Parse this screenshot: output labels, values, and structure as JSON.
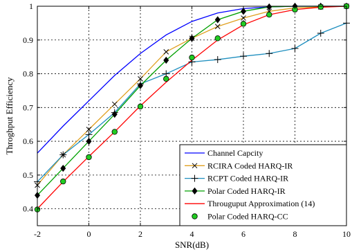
{
  "chart_data": {
    "type": "line",
    "xlabel": "SNR(dB)",
    "ylabel": "Throghput Efficiency",
    "xlim": [
      -2,
      10
    ],
    "ylim": [
      0.35,
      1.0
    ],
    "xticks": [
      -2,
      0,
      2,
      4,
      6,
      8,
      10
    ],
    "yticks": [
      0.4,
      0.5,
      0.6,
      0.7,
      0.8,
      0.9,
      1
    ],
    "xtick_labels": [
      "-2",
      "0",
      "2",
      "4",
      "6",
      "8",
      "10"
    ],
    "ytick_labels": [
      "0.4",
      "0.5",
      "0.6",
      "0.7",
      "0.8",
      "0.9",
      "1"
    ],
    "grid": true,
    "legend_position": "bottom-right",
    "series": [
      {
        "name": "Channel Capcity",
        "color": "#0000ff",
        "marker": "none",
        "x": [
          -2,
          -1,
          0,
          1,
          2,
          3,
          4,
          5,
          6,
          7,
          8,
          9,
          10
        ],
        "y": [
          0.565,
          0.645,
          0.72,
          0.795,
          0.86,
          0.915,
          0.955,
          0.98,
          0.993,
          0.998,
          1.0,
          1.0,
          1.0
        ]
      },
      {
        "name": "RCIRA Coded HARQ-IR",
        "color": "#e0a020",
        "marker": "x",
        "x": [
          -2,
          -1,
          0,
          1,
          2,
          3,
          4,
          5,
          6,
          7,
          8,
          9,
          10
        ],
        "y": [
          0.47,
          0.56,
          0.635,
          0.71,
          0.785,
          0.865,
          0.905,
          0.94,
          0.965,
          0.985,
          0.995,
          0.998,
          1.0
        ]
      },
      {
        "name": "RCPT Coded HARQ-IR",
        "color": "#1f8fbf",
        "marker": "plus",
        "x": [
          -2,
          -1,
          0,
          1,
          2,
          3,
          4,
          5,
          6,
          7,
          8,
          9,
          10
        ],
        "y": [
          0.48,
          0.56,
          0.62,
          0.685,
          0.77,
          0.8,
          0.835,
          0.842,
          0.852,
          0.86,
          0.875,
          0.92,
          0.95
        ]
      },
      {
        "name": "Polar Coded HARQ-IR",
        "color": "#00a000",
        "marker": "diamond",
        "x": [
          -2,
          -1,
          0,
          1,
          2,
          3,
          4,
          5,
          6,
          7,
          8,
          9,
          10
        ],
        "y": [
          0.44,
          0.52,
          0.6,
          0.68,
          0.765,
          0.84,
          0.905,
          0.96,
          0.985,
          0.998,
          1.0,
          1.0,
          1.0
        ]
      },
      {
        "name": "Througuput Approximation (14)",
        "color": "#ff0000",
        "marker": "none",
        "x": [
          -2,
          -1,
          0,
          1,
          2,
          3,
          4,
          5,
          6,
          7,
          8,
          9,
          10
        ],
        "y": [
          0.4,
          0.48,
          0.555,
          0.628,
          0.705,
          0.775,
          0.84,
          0.9,
          0.945,
          0.975,
          0.99,
          0.997,
          1.0
        ]
      },
      {
        "name": "Polar Coded HARQ-CC",
        "color": "#00a000",
        "marker": "circle",
        "x": [
          -2,
          -1,
          0,
          1,
          2,
          3,
          4,
          5,
          6,
          7,
          8,
          9,
          10
        ],
        "y": [
          0.398,
          0.481,
          0.553,
          0.628,
          0.703,
          0.785,
          0.848,
          0.905,
          0.948,
          0.975,
          0.99,
          0.998,
          1.0
        ]
      }
    ]
  }
}
